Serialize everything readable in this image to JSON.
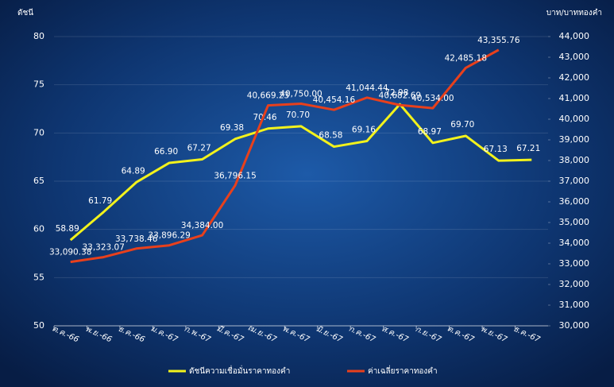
{
  "chart_data": {
    "type": "line",
    "y_label": "ดัชนี",
    "y2_label": "บาท/บาททองคำ",
    "categories": [
      "ต.ค.-66",
      "พ.ย.-66",
      "ธ.ค.-66",
      "ม.ค.-67",
      "ก.พ.-67",
      "มี.ค.-67",
      "เม.ย.-67",
      "พ.ค.-67",
      "มิ.ย.-67",
      "ก.ค.-67",
      "ส.ค.-67",
      "ก.ย.-67",
      "ต.ค.-67",
      "พ.ย.-67",
      "ธ.ค.-67"
    ],
    "series": [
      {
        "name": "ดัชนีความเชื่อมั่นราคาทองคำ",
        "color": "#f2f21c",
        "values": [
          58.89,
          61.79,
          64.89,
          66.9,
          67.27,
          69.38,
          70.46,
          70.7,
          68.58,
          69.16,
          72.98,
          68.97,
          69.7,
          67.13,
          67.21
        ],
        "value_labels": [
          "58.89",
          "61.79",
          "64.89",
          "66.90",
          "67.27",
          "69.38",
          "70.46",
          "70.70",
          "68.58",
          "69.16",
          "72.98",
          "68.97",
          "69.70",
          "67.13",
          "67.21"
        ]
      },
      {
        "name": "ค่าเฉลี่ยราคาทองคำ",
        "color": "#e8401c",
        "axis": "y2",
        "values": [
          33090.38,
          33323.07,
          33738.46,
          33896.29,
          34384.0,
          36796.15,
          40669.23,
          40750.0,
          40454.16,
          41044.44,
          40682.69,
          40534.0,
          42485.18,
          43355.76,
          null
        ],
        "value_labels": [
          "33,090.38",
          "33,323.07",
          "33,738.46",
          "33,896.29",
          "34,384.00",
          "36,796.15",
          "40,669.23",
          "40,750.00",
          "40,454.16",
          "41,044.44",
          "40,682.69",
          "40,534.00",
          "42,485.18",
          "43,355.76",
          null
        ]
      }
    ],
    "ylim": [
      50,
      80
    ],
    "yticks": [
      50,
      55,
      60,
      65,
      70,
      75,
      80
    ],
    "y2lim": [
      30000,
      44000
    ],
    "y2ticks": [
      {
        "value": 30000,
        "label": "30,000"
      },
      {
        "value": 31000,
        "label": "31,000"
      },
      {
        "value": 32000,
        "label": "32,000"
      },
      {
        "value": 33000,
        "label": "33,000"
      },
      {
        "value": 34000,
        "label": "34,000"
      },
      {
        "value": 35000,
        "label": "35,000"
      },
      {
        "value": 36000,
        "label": "36,000"
      },
      {
        "value": 37000,
        "label": "37,000"
      },
      {
        "value": 38000,
        "label": "38,000"
      },
      {
        "value": 39000,
        "label": "39,000"
      },
      {
        "value": 40000,
        "label": "40,000"
      },
      {
        "value": 41000,
        "label": "41,000"
      },
      {
        "value": 42000,
        "label": "42,000"
      },
      {
        "value": 43000,
        "label": "43,000"
      },
      {
        "value": 44000,
        "label": "44,000"
      }
    ],
    "grid": true,
    "legend": "bottom"
  }
}
